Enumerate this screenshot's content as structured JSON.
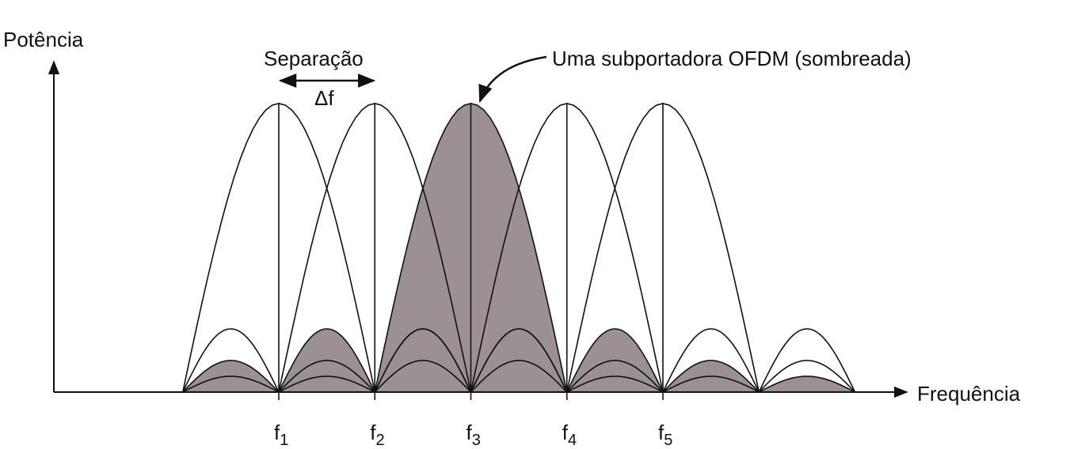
{
  "axes": {
    "y_label": "Potência",
    "x_label": "Frequência"
  },
  "spacing": {
    "label": "Separação",
    "symbol": "Δf"
  },
  "annotation": "Uma subportadora OFDM (sombreada)",
  "frequencies": [
    {
      "base": "f",
      "sub": "1"
    },
    {
      "base": "f",
      "sub": "2"
    },
    {
      "base": "f",
      "sub": "3"
    },
    {
      "base": "f",
      "sub": "4"
    },
    {
      "base": "f",
      "sub": "5"
    }
  ]
}
